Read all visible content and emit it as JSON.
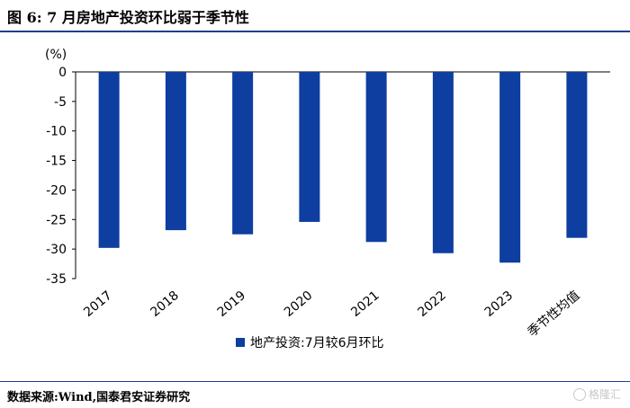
{
  "figure": {
    "title": "图 6:  7 月房地产投资环比弱于季节性",
    "source": "数据来源:Wind,国泰君安证券研究",
    "watermark": "格隆汇"
  },
  "chart_data": {
    "type": "bar",
    "unit_label": "(%)",
    "categories": [
      "2017",
      "2018",
      "2019",
      "2020",
      "2021",
      "2022",
      "2023",
      "季节性均值"
    ],
    "series": [
      {
        "name": "地产投资:7月较6月环比",
        "values": [
          -29.8,
          -26.8,
          -27.5,
          -25.4,
          -28.8,
          -30.7,
          -32.3,
          -28.1
        ]
      }
    ],
    "ylim": [
      -35,
      0
    ],
    "yticks": [
      0,
      -5,
      -10,
      -15,
      -20,
      -25,
      -30,
      -35
    ],
    "legend_position": "bottom",
    "colors": {
      "bar": "#0d3ea0"
    }
  }
}
